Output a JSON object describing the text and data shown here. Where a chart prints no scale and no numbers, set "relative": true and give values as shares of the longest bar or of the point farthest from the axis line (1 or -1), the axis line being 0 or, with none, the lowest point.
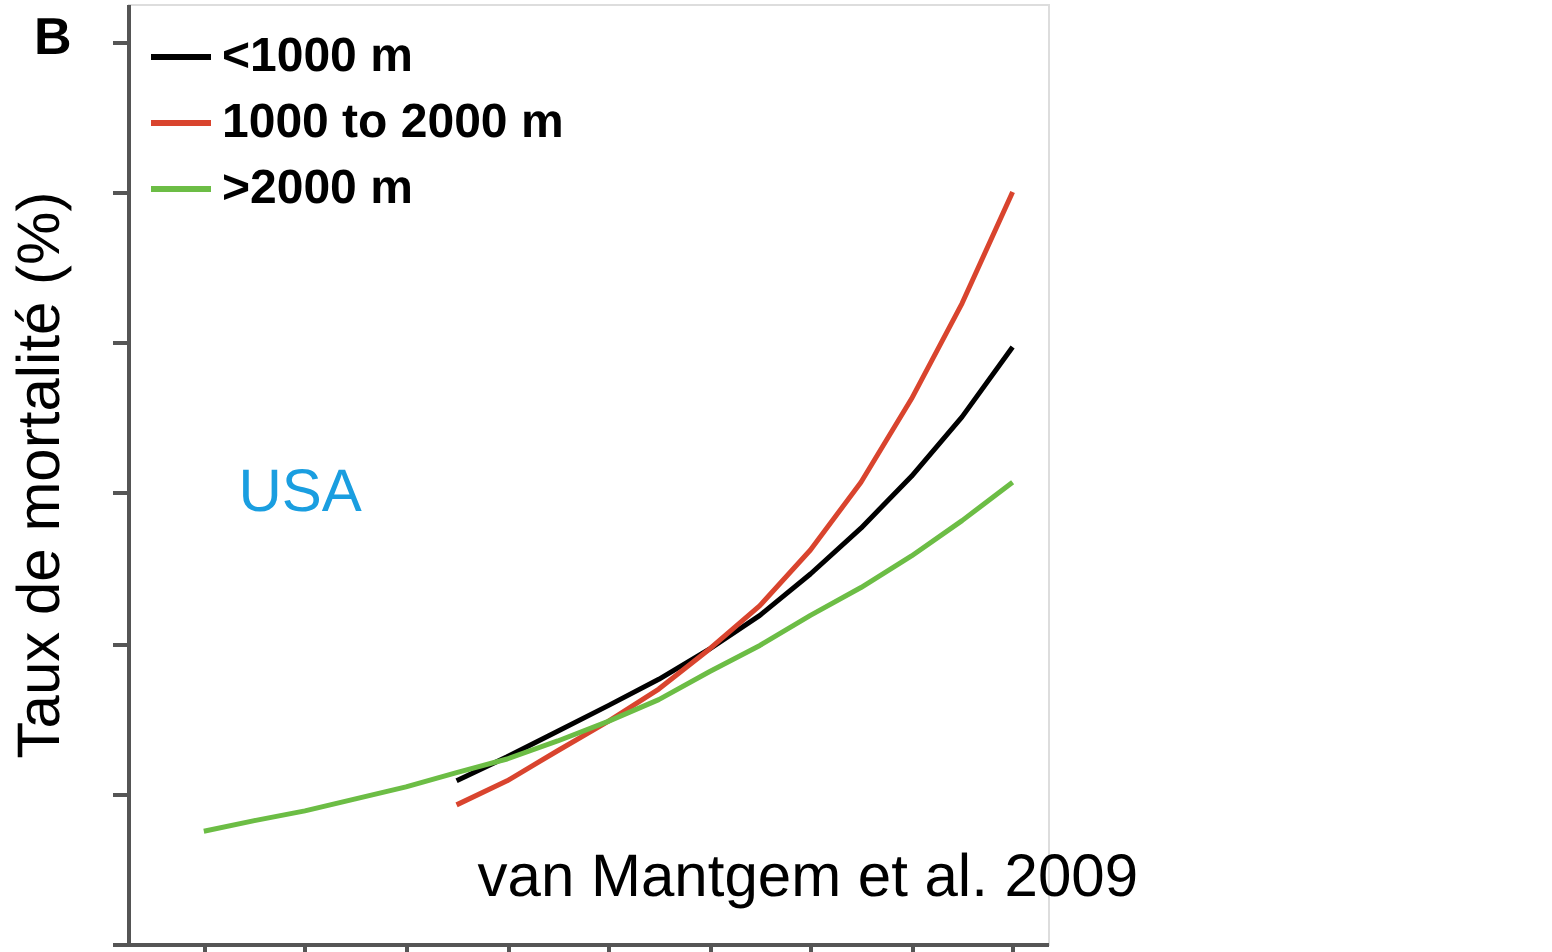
{
  "chart_data": {
    "type": "line",
    "title": "B",
    "ylabel": "Taux de mortalité (%)",
    "relative": true,
    "tick_labels": false,
    "legend": "top left",
    "grid": false,
    "marker": "none",
    "line_style": "solid",
    "categories": [
      null,
      null,
      null,
      null,
      null,
      null,
      null,
      null,
      null,
      null,
      null,
      null,
      null,
      null,
      null,
      null,
      null
    ],
    "annotations": [
      "USA",
      "van Mantgem et al. 2009"
    ],
    "series": [
      {
        "name": "<1000 m",
        "color": "#000000",
        "values": [
          null,
          null,
          null,
          null,
          null,
          0.217,
          0.249,
          0.283,
          0.317,
          0.352,
          0.392,
          0.437,
          0.492,
          0.553,
          0.622,
          0.701,
          0.794
        ]
      },
      {
        "name": "1000 to 2000 m",
        "color": "#d9442e",
        "values": [
          null,
          null,
          null,
          null,
          null,
          0.185,
          0.217,
          0.257,
          0.296,
          0.339,
          0.392,
          0.45,
          0.524,
          0.614,
          0.725,
          0.852,
          1
        ]
      },
      {
        "name": ">2000 m",
        "color": "#6cbd45",
        "values": [
          0.15,
          0.164,
          0.177,
          0.193,
          0.209,
          0.228,
          0.246,
          0.27,
          0.296,
          0.325,
          0.362,
          0.397,
          0.437,
          0.474,
          0.516,
          0.563,
          0.614
        ]
      }
    ]
  }
}
